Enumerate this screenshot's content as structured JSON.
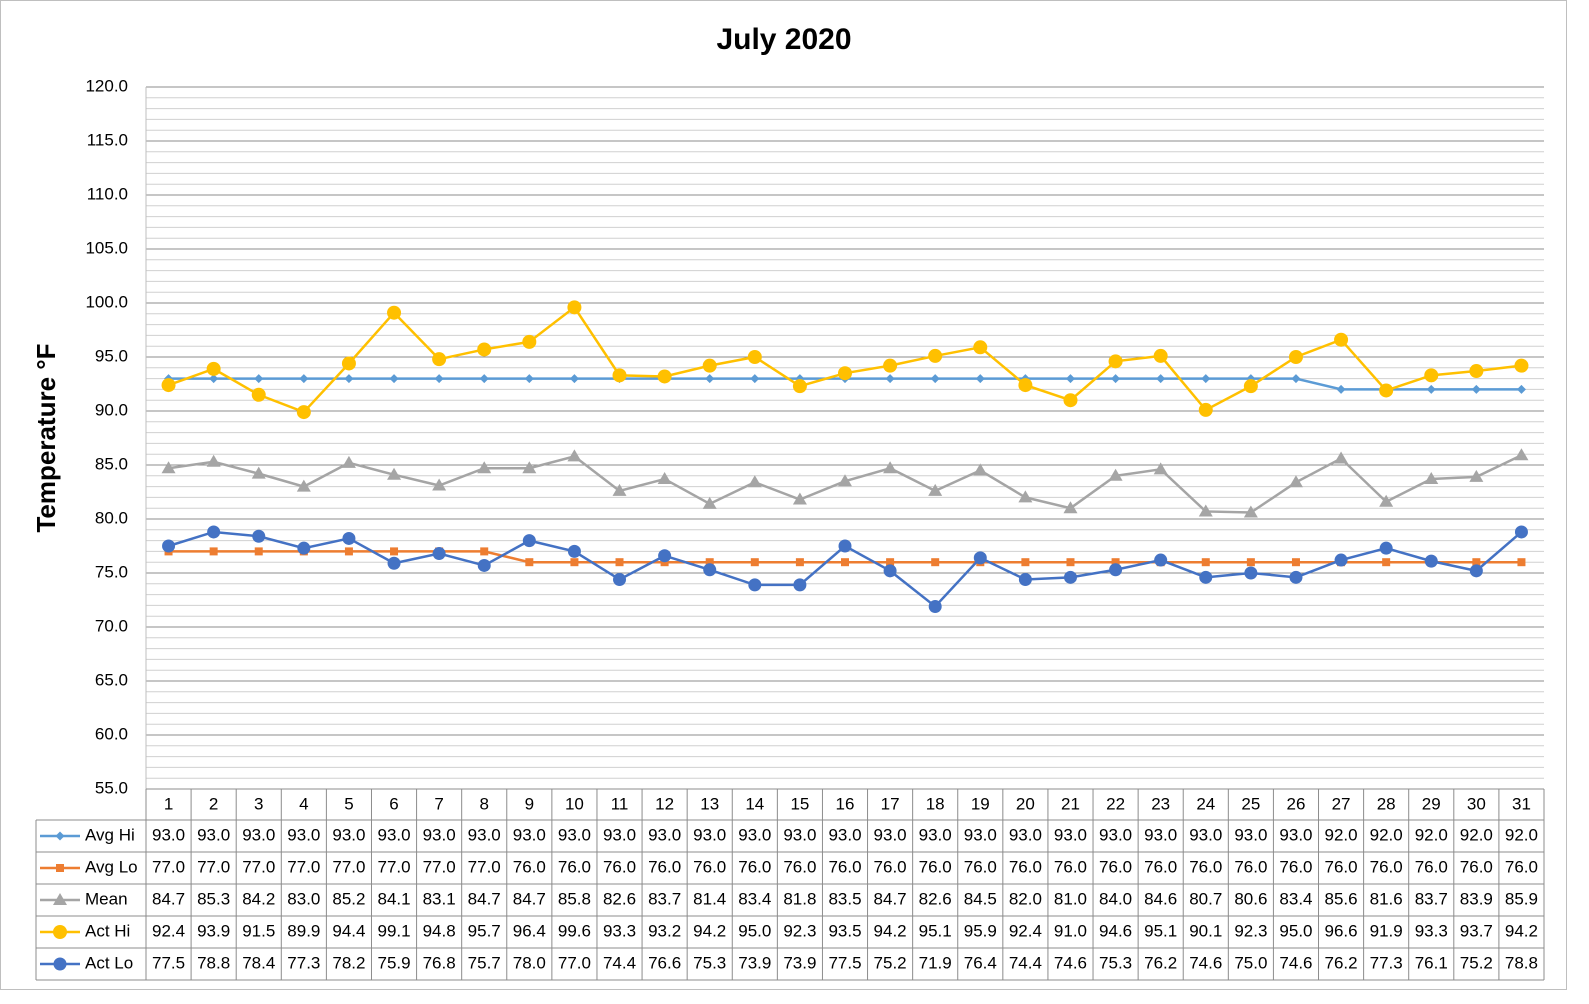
{
  "chart_data": {
    "type": "line",
    "title": "July 2020",
    "y_label": "Temperature °F",
    "categories": [
      "1",
      "2",
      "3",
      "4",
      "5",
      "6",
      "7",
      "8",
      "9",
      "10",
      "11",
      "12",
      "13",
      "14",
      "15",
      "16",
      "17",
      "18",
      "19",
      "20",
      "21",
      "22",
      "23",
      "24",
      "25",
      "26",
      "27",
      "28",
      "29",
      "30",
      "31"
    ],
    "ylim": [
      55,
      120
    ],
    "yticks": [
      {
        "value": 55,
        "label": "55.0"
      },
      {
        "value": 60,
        "label": "60.0"
      },
      {
        "value": 65,
        "label": "65.0"
      },
      {
        "value": 70,
        "label": "70.0"
      },
      {
        "value": 75,
        "label": "75.0"
      },
      {
        "value": 80,
        "label": "80.0"
      },
      {
        "value": 85,
        "label": "85.0"
      },
      {
        "value": 90,
        "label": "90.0"
      },
      {
        "value": 95,
        "label": "95.0"
      },
      {
        "value": 100,
        "label": "100.0"
      },
      {
        "value": 105,
        "label": "105.0"
      },
      {
        "value": 110,
        "label": "110.0"
      },
      {
        "value": 115,
        "label": "115.0"
      },
      {
        "value": 120,
        "label": "120.0"
      }
    ],
    "grid": true,
    "minor_grid": 1,
    "data_table": true,
    "series": [
      {
        "name": "Avg Hi",
        "color": "#5b9bd5",
        "marker": "diamond",
        "values": [
          93,
          93,
          93,
          93,
          93,
          93,
          93,
          93,
          93,
          93,
          93,
          93,
          93,
          93,
          93,
          93,
          93,
          93,
          93,
          93,
          93,
          93,
          93,
          93,
          93,
          93,
          92,
          92,
          92,
          92,
          92
        ],
        "value_labels": [
          "93.0",
          "93.0",
          "93.0",
          "93.0",
          "93.0",
          "93.0",
          "93.0",
          "93.0",
          "93.0",
          "93.0",
          "93.0",
          "93.0",
          "93.0",
          "93.0",
          "93.0",
          "93.0",
          "93.0",
          "93.0",
          "93.0",
          "93.0",
          "93.0",
          "93.0",
          "93.0",
          "93.0",
          "93.0",
          "93.0",
          "92.0",
          "92.0",
          "92.0",
          "92.0",
          "92.0"
        ]
      },
      {
        "name": "Avg Lo",
        "color": "#ed7d31",
        "marker": "square",
        "values": [
          77,
          77,
          77,
          77,
          77,
          77,
          77,
          77,
          76,
          76,
          76,
          76,
          76,
          76,
          76,
          76,
          76,
          76,
          76,
          76,
          76,
          76,
          76,
          76,
          76,
          76,
          76,
          76,
          76,
          76,
          76
        ],
        "value_labels": [
          "77.0",
          "77.0",
          "77.0",
          "77.0",
          "77.0",
          "77.0",
          "77.0",
          "77.0",
          "76.0",
          "76.0",
          "76.0",
          "76.0",
          "76.0",
          "76.0",
          "76.0",
          "76.0",
          "76.0",
          "76.0",
          "76.0",
          "76.0",
          "76.0",
          "76.0",
          "76.0",
          "76.0",
          "76.0",
          "76.0",
          "76.0",
          "76.0",
          "76.0",
          "76.0",
          "76.0"
        ]
      },
      {
        "name": "Mean",
        "color": "#a5a5a5",
        "marker": "triangle",
        "values": [
          84.7,
          85.3,
          84.2,
          83.0,
          85.2,
          84.1,
          83.1,
          84.7,
          84.7,
          85.8,
          82.6,
          83.7,
          81.4,
          83.4,
          81.8,
          83.5,
          84.7,
          82.6,
          84.5,
          82.0,
          81.0,
          84.0,
          84.6,
          80.7,
          80.6,
          83.4,
          85.6,
          81.6,
          83.7,
          83.9,
          85.9
        ],
        "value_labels": [
          "84.7",
          "85.3",
          "84.2",
          "83.0",
          "85.2",
          "84.1",
          "83.1",
          "84.7",
          "84.7",
          "85.8",
          "82.6",
          "83.7",
          "81.4",
          "83.4",
          "81.8",
          "83.5",
          "84.7",
          "82.6",
          "84.5",
          "82.0",
          "81.0",
          "84.0",
          "84.6",
          "80.7",
          "80.6",
          "83.4",
          "85.6",
          "81.6",
          "83.7",
          "83.9",
          "85.9"
        ]
      },
      {
        "name": "Act Hi",
        "color": "#ffc000",
        "marker": "circle",
        "values": [
          92.4,
          93.9,
          91.5,
          89.9,
          94.4,
          99.1,
          94.8,
          95.7,
          96.4,
          99.6,
          93.3,
          93.2,
          94.2,
          95.0,
          92.3,
          93.5,
          94.2,
          95.1,
          95.9,
          92.4,
          91.0,
          94.6,
          95.1,
          90.1,
          92.3,
          95.0,
          96.6,
          91.9,
          93.3,
          93.7,
          94.2
        ],
        "value_labels": [
          "92.4",
          "93.9",
          "91.5",
          "89.9",
          "94.4",
          "99.1",
          "94.8",
          "95.7",
          "96.4",
          "99.6",
          "93.3",
          "93.2",
          "94.2",
          "95.0",
          "92.3",
          "93.5",
          "94.2",
          "95.1",
          "95.9",
          "92.4",
          "91.0",
          "94.6",
          "95.1",
          "90.1",
          "92.3",
          "95.0",
          "96.6",
          "91.9",
          "93.3",
          "93.7",
          "94.2"
        ]
      },
      {
        "name": "Act Lo",
        "color": "#4472c4",
        "marker": "circle",
        "values": [
          77.5,
          78.8,
          78.4,
          77.3,
          78.2,
          75.9,
          76.8,
          75.7,
          78.0,
          77.0,
          74.4,
          76.6,
          75.3,
          73.9,
          73.9,
          77.5,
          75.2,
          71.9,
          76.4,
          74.4,
          74.6,
          75.3,
          76.2,
          74.6,
          75.0,
          74.6,
          76.2,
          77.3,
          76.1,
          75.2,
          78.8
        ],
        "value_labels": [
          "77.5",
          "78.8",
          "78.4",
          "77.3",
          "78.2",
          "75.9",
          "76.8",
          "75.7",
          "78.0",
          "77.0",
          "74.4",
          "76.6",
          "75.3",
          "73.9",
          "73.9",
          "77.5",
          "75.2",
          "71.9",
          "76.4",
          "74.4",
          "74.6",
          "75.3",
          "76.2",
          "74.6",
          "75.0",
          "74.6",
          "76.2",
          "77.3",
          "76.1",
          "75.2",
          "78.8"
        ]
      }
    ]
  }
}
